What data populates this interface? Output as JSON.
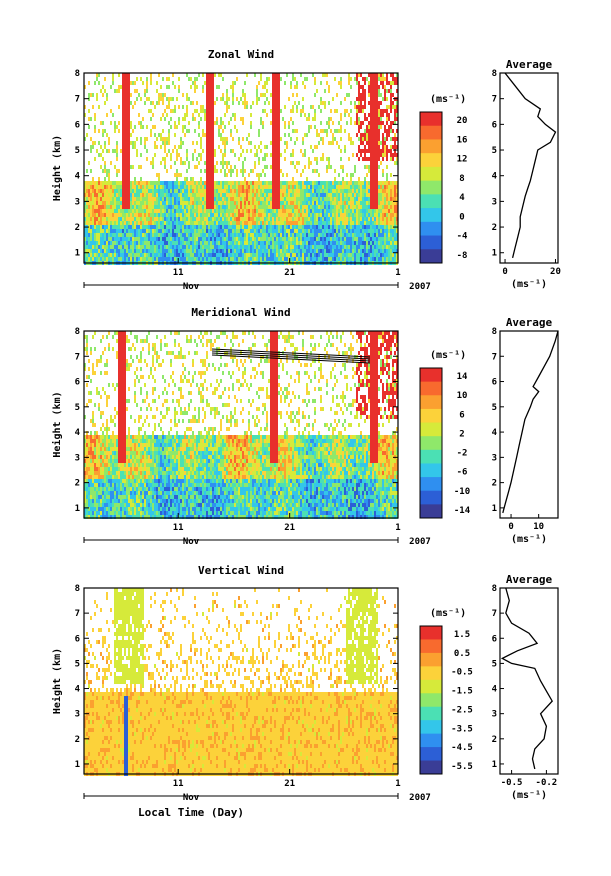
{
  "chart_data": [
    {
      "type": "heatmap",
      "title": "Zonal Wind",
      "ylabel": "Height (km)",
      "x_ticks": [
        "11",
        "21",
        "1"
      ],
      "month_label": "Nov",
      "year_label": "2007",
      "ylim": [
        0.6,
        8
      ],
      "y_ticks": [
        1,
        2,
        3,
        4,
        5,
        6,
        7,
        8
      ],
      "unit_label": "(ms⁻¹)",
      "colorbar_ticks": [
        "20",
        "16",
        "12",
        "8",
        "4",
        "0",
        "-4",
        "-8"
      ],
      "average": {
        "title": "Average",
        "xlabel": "(ms⁻¹)",
        "x_ticks": [
          "0",
          "20"
        ],
        "xlim": [
          -2,
          21
        ],
        "profile": [
          [
            3,
            0.8
          ],
          [
            4,
            1.2
          ],
          [
            5,
            1.6
          ],
          [
            6,
            2.0
          ],
          [
            6,
            2.4
          ],
          [
            7,
            2.8
          ],
          [
            8,
            3.2
          ],
          [
            9,
            3.5
          ],
          [
            10,
            3.8
          ],
          [
            11,
            4.2
          ],
          [
            12,
            4.6
          ],
          [
            13,
            5.0
          ],
          [
            18,
            5.3
          ],
          [
            20,
            5.7
          ],
          [
            16,
            6.0
          ],
          [
            13,
            6.3
          ],
          [
            14,
            6.6
          ],
          [
            8,
            7.0
          ],
          [
            4,
            7.5
          ],
          [
            0,
            8.0
          ]
        ]
      }
    },
    {
      "type": "heatmap",
      "title": "Meridional Wind",
      "ylabel": "Height (km)",
      "x_ticks": [
        "11",
        "21",
        "1"
      ],
      "month_label": "Nov",
      "year_label": "2007",
      "ylim": [
        0.6,
        8
      ],
      "y_ticks": [
        1,
        2,
        3,
        4,
        5,
        6,
        7,
        8
      ],
      "unit_label": "(ms⁻¹)",
      "colorbar_ticks": [
        "14",
        "10",
        "6",
        "2",
        "-2",
        "-6",
        "-10",
        "-14"
      ],
      "average": {
        "title": "Average",
        "xlabel": "(ms⁻¹)",
        "x_ticks": [
          "0",
          "10"
        ],
        "xlim": [
          -4,
          17
        ],
        "profile": [
          [
            -3,
            0.8
          ],
          [
            -2,
            1.2
          ],
          [
            -1,
            1.6
          ],
          [
            0,
            2.0
          ],
          [
            1,
            2.5
          ],
          [
            2,
            3.0
          ],
          [
            3,
            3.5
          ],
          [
            4,
            4.0
          ],
          [
            5,
            4.5
          ],
          [
            7,
            5.0
          ],
          [
            8,
            5.3
          ],
          [
            10,
            5.6
          ],
          [
            8,
            5.8
          ],
          [
            10,
            6.2
          ],
          [
            12,
            6.6
          ],
          [
            14,
            7.0
          ],
          [
            16,
            7.6
          ],
          [
            17,
            8.0
          ]
        ]
      }
    },
    {
      "type": "heatmap",
      "title": "Vertical Wind",
      "ylabel": "Height (km)",
      "xlabel": "Local Time (Day)",
      "x_ticks": [
        "11",
        "21",
        "1"
      ],
      "month_label": "Nov",
      "year_label": "2007",
      "ylim": [
        0.6,
        8
      ],
      "y_ticks": [
        1,
        2,
        3,
        4,
        5,
        6,
        7,
        8
      ],
      "unit_label": "(ms⁻¹)",
      "colorbar_ticks": [
        "1.5",
        "0.5",
        "-0.5",
        "-1.5",
        "-2.5",
        "-3.5",
        "-4.5",
        "-5.5"
      ],
      "average": {
        "title": "Average",
        "xlabel": "(ms⁻¹)",
        "x_ticks": [
          "-0.5",
          "-0.2"
        ],
        "xlim": [
          -0.6,
          -0.1
        ],
        "profile": [
          [
            -0.3,
            0.8
          ],
          [
            -0.32,
            1.2
          ],
          [
            -0.3,
            1.6
          ],
          [
            -0.22,
            2.0
          ],
          [
            -0.2,
            2.5
          ],
          [
            -0.25,
            3.0
          ],
          [
            -0.15,
            3.5
          ],
          [
            -0.2,
            3.9
          ],
          [
            -0.25,
            4.3
          ],
          [
            -0.3,
            4.8
          ],
          [
            -0.5,
            5.0
          ],
          [
            -0.58,
            5.2
          ],
          [
            -0.45,
            5.5
          ],
          [
            -0.28,
            5.8
          ],
          [
            -0.35,
            6.2
          ],
          [
            -0.5,
            6.6
          ],
          [
            -0.55,
            7.0
          ],
          [
            -0.52,
            7.5
          ],
          [
            -0.55,
            8.0
          ]
        ]
      }
    }
  ],
  "colors": {
    "colormap": [
      "#3a3d96",
      "#2c5fd6",
      "#2f8ff0",
      "#33c6ea",
      "#4be0b4",
      "#8fe86a",
      "#d6ea3a",
      "#fcd23a",
      "#fba030",
      "#f86a2e",
      "#e8302c"
    ],
    "axis": "#000000"
  }
}
